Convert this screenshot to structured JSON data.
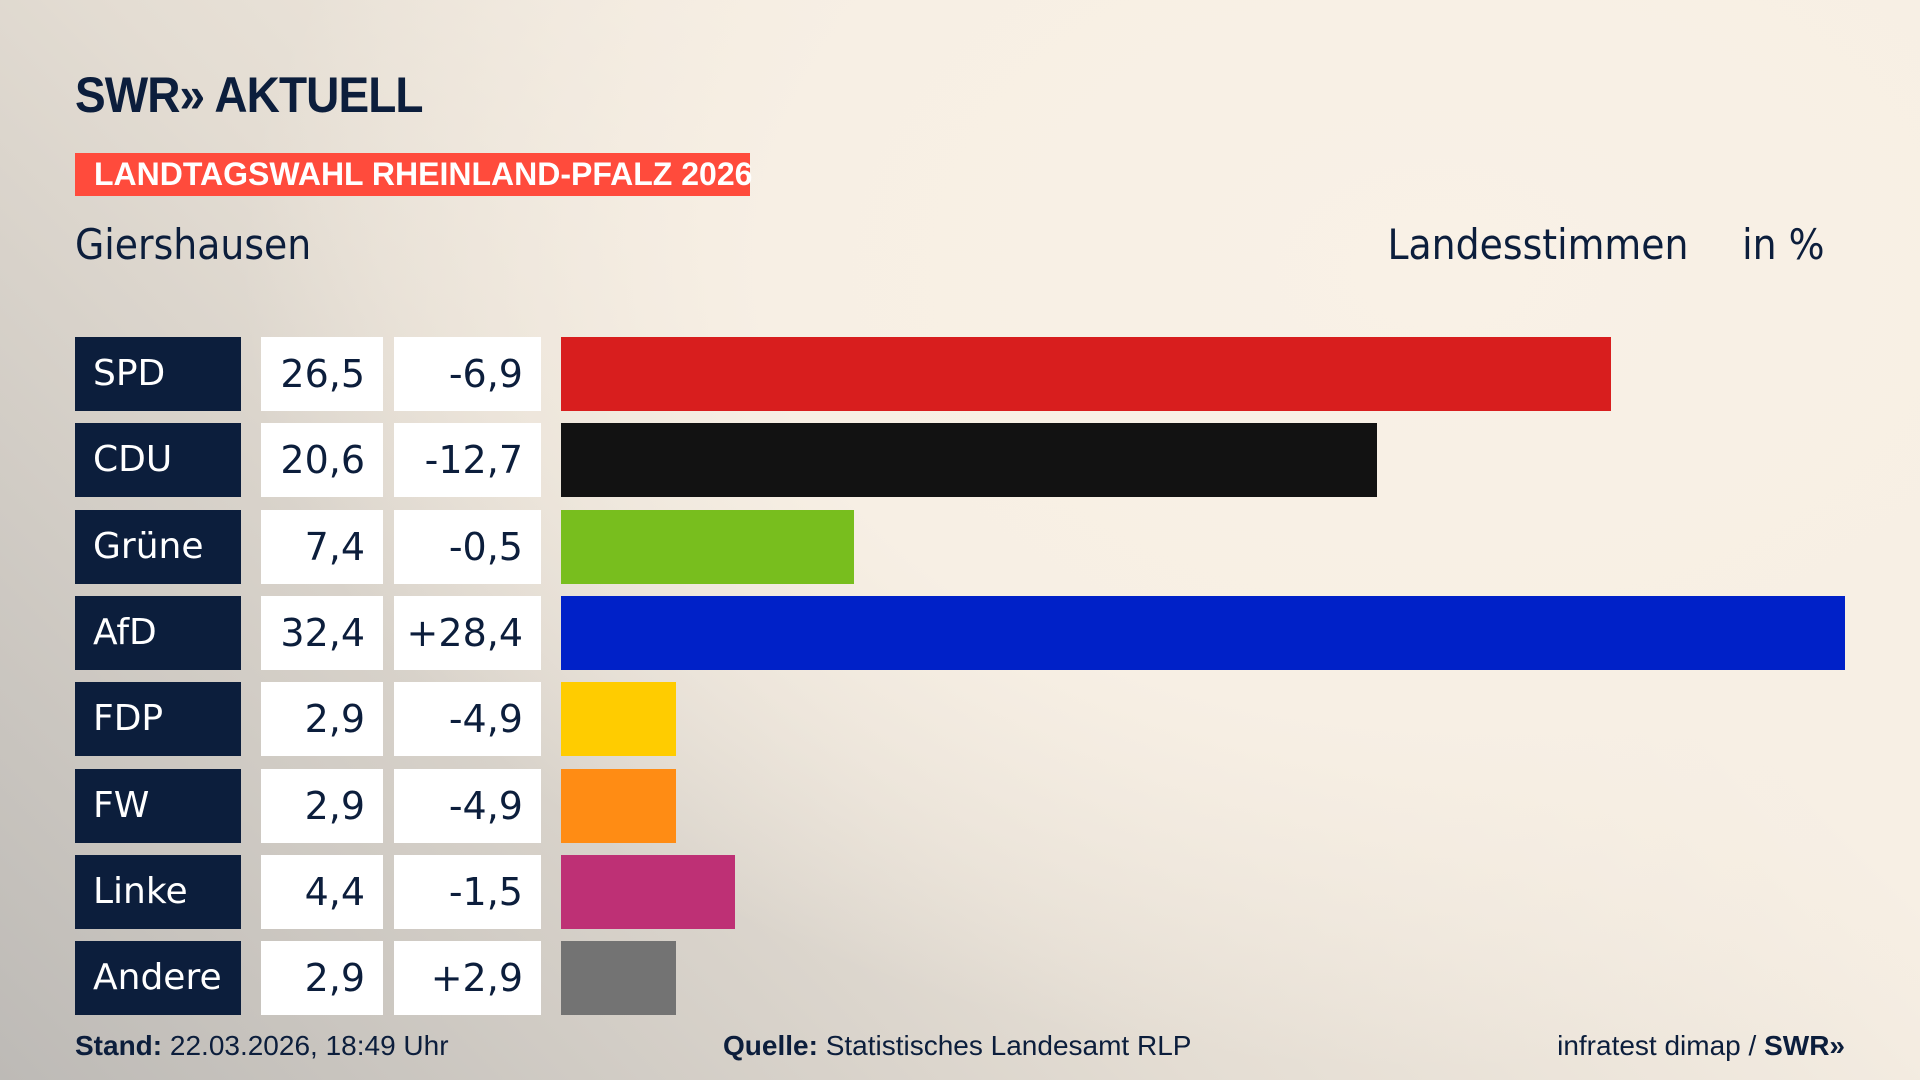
{
  "header": {
    "logo": "SWR» AKTUELL",
    "banner": "LANDTAGSWAHL RHEINLAND-PFALZ 2026",
    "place": "Giershausen",
    "measure": "Landesstimmen",
    "unit": "in %"
  },
  "chart_data": {
    "type": "bar",
    "orientation": "horizontal",
    "categories": [
      "SPD",
      "CDU",
      "Grüne",
      "AfD",
      "FDP",
      "FW",
      "Linke",
      "Andere"
    ],
    "values": [
      26.5,
      20.6,
      7.4,
      32.4,
      2.9,
      2.9,
      4.4,
      2.9
    ],
    "values_label": [
      "26,5",
      "20,6",
      "7,4",
      "32,4",
      "2,9",
      "2,9",
      "4,4",
      "2,9"
    ],
    "diff_label": [
      "-6,9",
      "-12,7",
      "-0,5",
      "+28,4",
      "-4,9",
      "-4,9",
      "-1,5",
      "+2,9"
    ],
    "colors": [
      "#d81e1e",
      "#121212",
      "#78be1e",
      "#0021c8",
      "#ffcc00",
      "#ff8c14",
      "#be3075",
      "#737373"
    ],
    "title": "Landesstimmen",
    "ylabel": "in %",
    "grid": false
  },
  "footer": {
    "stand_label": "Stand:",
    "stand": "22.03.2026, 18:49 Uhr",
    "quelle_label": "Quelle:",
    "quelle": "Statistisches Landesamt RLP",
    "credit": "infratest dimap / ",
    "credit_brand": "SWR»"
  }
}
